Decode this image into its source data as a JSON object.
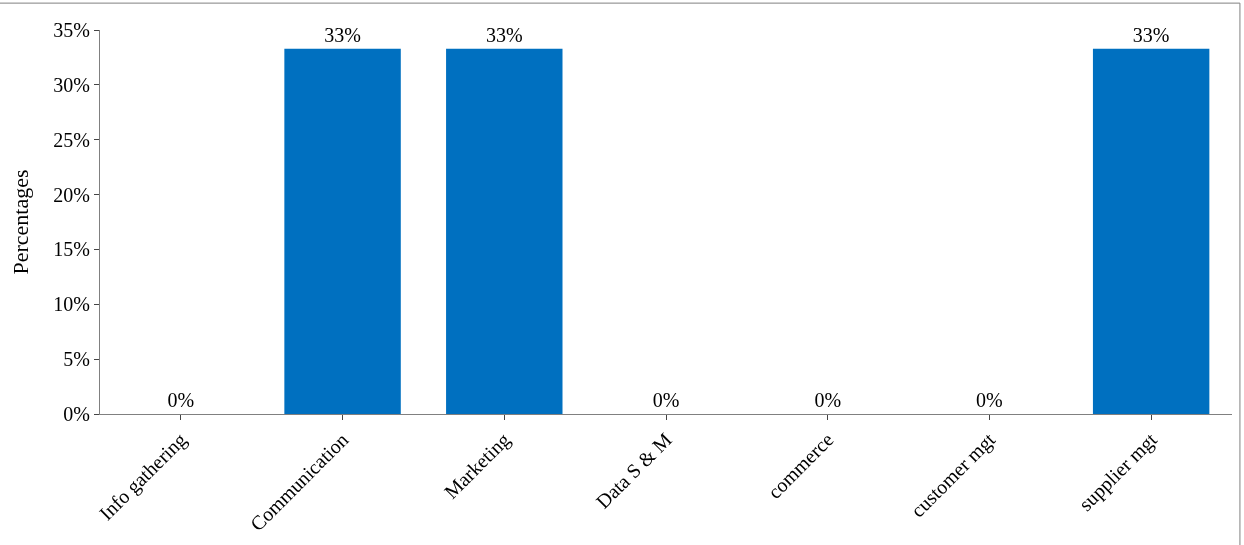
{
  "chart_data": {
    "type": "bar",
    "ylabel": "Percentages",
    "categories": [
      "Info gathering",
      "Communication",
      "Marketing",
      "Data S & M",
      "commerce",
      "customer mgt",
      "supplier mgt"
    ],
    "values": [
      0,
      33.3,
      33.3,
      0,
      0,
      0,
      33.3
    ],
    "value_labels": [
      "0%",
      "33%",
      "33%",
      "0%",
      "0%",
      "0%",
      "33%"
    ],
    "color": "#0070c0",
    "ylim": [
      0,
      35
    ],
    "yticks": [
      {
        "value": 0,
        "label": "0%"
      },
      {
        "value": 5,
        "label": "5%"
      },
      {
        "value": 10,
        "label": "10%"
      },
      {
        "value": 15,
        "label": "15%"
      },
      {
        "value": 20,
        "label": "20%"
      },
      {
        "value": 25,
        "label": "25%"
      },
      {
        "value": 30,
        "label": "30%"
      },
      {
        "value": 35,
        "label": "35%"
      }
    ],
    "legend": false
  }
}
